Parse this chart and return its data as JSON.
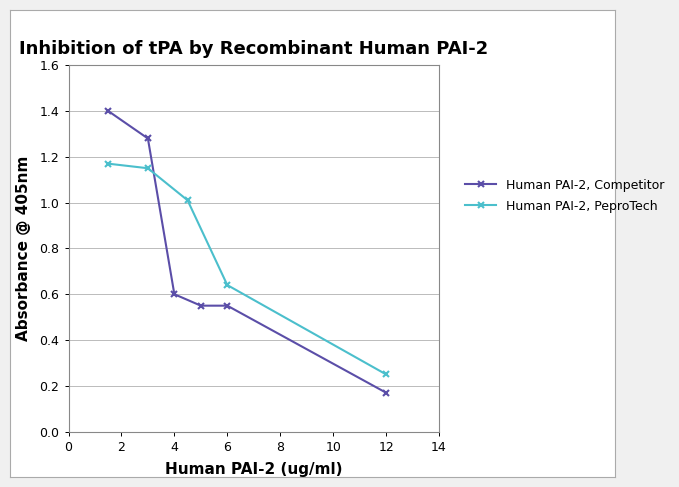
{
  "title": "Inhibition of tPA by Recombinant Human PAI-2",
  "xlabel": "Human PAI-2 (ug/ml)",
  "ylabel": "Absorbance @ 405nm",
  "xlim": [
    0,
    14
  ],
  "ylim": [
    0,
    1.6
  ],
  "xticks": [
    0,
    2,
    4,
    6,
    8,
    10,
    12,
    14
  ],
  "yticks": [
    0,
    0.2,
    0.4,
    0.6,
    0.8,
    1.0,
    1.2,
    1.4,
    1.6
  ],
  "competitor": {
    "x": [
      1.5,
      3.0,
      4.0,
      5.0,
      6.0,
      12.0
    ],
    "y": [
      1.4,
      1.28,
      0.6,
      0.55,
      0.55,
      0.17
    ],
    "color": "#5b4ea8",
    "label": "Human PAI-2, Competitor",
    "marker": "x",
    "linewidth": 1.5
  },
  "peprotech": {
    "x": [
      1.5,
      3.0,
      4.5,
      6.0,
      12.0
    ],
    "y": [
      1.17,
      1.15,
      1.01,
      0.64,
      0.25
    ],
    "color": "#4bbfcc",
    "label": "Human PAI-2, PeproTech",
    "marker": "x",
    "linewidth": 1.5
  },
  "figure_bg": "#f0f0f0",
  "plot_bg": "#ffffff",
  "border_color": "#cccccc",
  "grid_color": "#bbbbbb",
  "title_fontsize": 13,
  "axis_label_fontsize": 11,
  "tick_fontsize": 9,
  "legend_fontsize": 9
}
